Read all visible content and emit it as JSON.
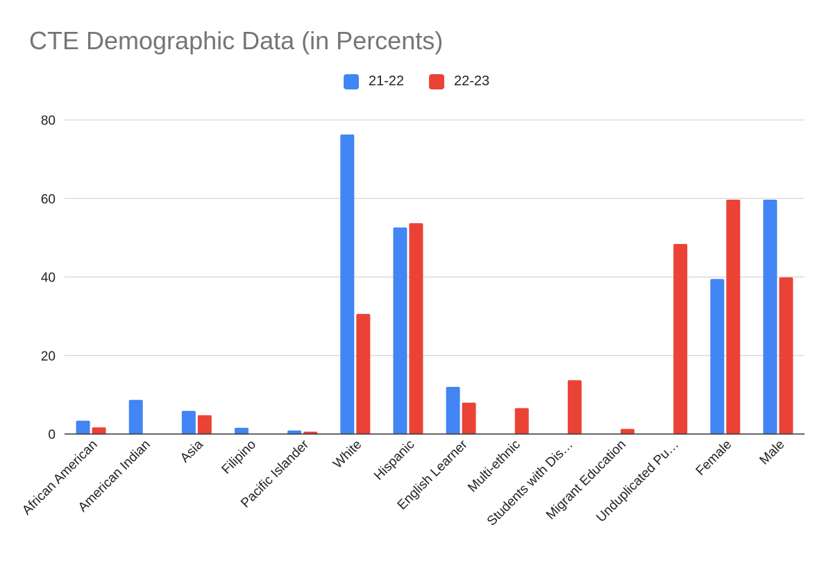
{
  "chart_data": {
    "type": "bar",
    "title": "CTE Demographic Data (in Percents)",
    "xlabel": "",
    "ylabel": "",
    "ylim": [
      0,
      80
    ],
    "yticks": [
      0,
      20,
      40,
      60,
      80
    ],
    "grid": true,
    "legend_position": "top",
    "categories": [
      "African American",
      "American Indian",
      "Asia",
      "Filipino",
      "Pacific Islander",
      "White",
      "Hispanic",
      "English Learner",
      "Multi-ethnic",
      "Students with Dis…",
      "Migrant Education",
      "Unduplicated Pu…",
      "Female",
      "Male"
    ],
    "series": [
      {
        "name": "21-22",
        "color": "#4285f4",
        "values": [
          3.4,
          8.7,
          5.9,
          1.6,
          0.9,
          76.3,
          52.6,
          12.0,
          0,
          0,
          0,
          0,
          39.5,
          59.7
        ]
      },
      {
        "name": "22-23",
        "color": "#ea4335",
        "values": [
          1.7,
          0,
          4.8,
          0,
          0.6,
          30.6,
          53.7,
          8.0,
          6.6,
          13.7,
          1.3,
          48.4,
          59.7,
          39.9
        ]
      }
    ]
  }
}
